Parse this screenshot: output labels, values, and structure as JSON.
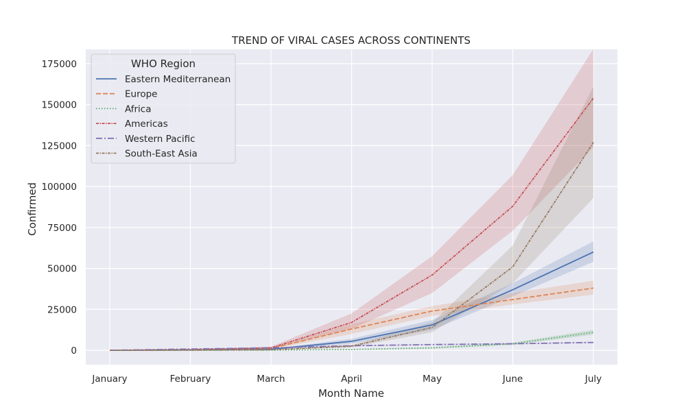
{
  "chart_data": {
    "type": "line",
    "title": "TREND OF VIRAL CASES ACROSS CONTINENTS",
    "xlabel": "Month Name",
    "ylabel": "Confirmed",
    "categories": [
      "January",
      "February",
      "March",
      "April",
      "May",
      "June",
      "July"
    ],
    "ylim": [
      -8750,
      183750
    ],
    "yticks": [
      0,
      25000,
      50000,
      75000,
      100000,
      125000,
      150000,
      175000
    ],
    "ytick_labels": [
      "0",
      "25000",
      "50000",
      "75000",
      "100000",
      "125000",
      "150000",
      "175000"
    ],
    "grid": true,
    "legend": {
      "title": "WHO Region",
      "placement": "top-left"
    },
    "series": [
      {
        "name": "Eastern Mediterranean",
        "color": "#4c72b0",
        "dash": "solid",
        "values": [
          0,
          200,
          600,
          5500,
          15500,
          37000,
          60000
        ],
        "ci_low": [
          0,
          100,
          300,
          4000,
          12500,
          33000,
          54000
        ],
        "ci_high": [
          0,
          300,
          900,
          7000,
          18500,
          41000,
          66500
        ]
      },
      {
        "name": "Europe",
        "color": "#dd8452",
        "dash": "dashed",
        "values": [
          0,
          300,
          1200,
          13000,
          24000,
          31000,
          38000
        ],
        "ci_low": [
          0,
          200,
          700,
          10000,
          21000,
          28000,
          34000
        ],
        "ci_high": [
          0,
          400,
          1700,
          16000,
          27000,
          35000,
          42500
        ]
      },
      {
        "name": "Africa",
        "color": "#55a868",
        "dash": "dotted",
        "values": [
          0,
          50,
          100,
          500,
          1500,
          4000,
          11000
        ],
        "ci_low": [
          0,
          25,
          50,
          300,
          1100,
          3300,
          9500
        ],
        "ci_high": [
          0,
          75,
          150,
          700,
          1900,
          4700,
          12500
        ]
      },
      {
        "name": "Americas",
        "color": "#c44e52",
        "dash": "dashdot-fine",
        "values": [
          0,
          400,
          1500,
          17000,
          46000,
          88000,
          154000
        ],
        "ci_low": [
          0,
          250,
          800,
          13000,
          35000,
          73000,
          124000
        ],
        "ci_high": [
          0,
          550,
          2200,
          22500,
          57500,
          107000,
          184000
        ]
      },
      {
        "name": "Western Pacific",
        "color": "#8172b3",
        "dash": "dashdot",
        "values": [
          0,
          800,
          1500,
          2800,
          3500,
          4000,
          4800
        ],
        "ci_low": [
          0,
          600,
          1200,
          2400,
          3100,
          3600,
          4400
        ],
        "ci_high": [
          0,
          1000,
          1800,
          3200,
          3900,
          4400,
          5200
        ]
      },
      {
        "name": "South-East Asia",
        "color": "#937860",
        "dash": "dashdot-fine",
        "values": [
          0,
          100,
          300,
          2500,
          14000,
          51000,
          127000
        ],
        "ci_low": [
          0,
          50,
          150,
          1800,
          11000,
          41000,
          93000
        ],
        "ci_high": [
          0,
          150,
          450,
          3200,
          17000,
          64000,
          161000
        ]
      }
    ]
  }
}
